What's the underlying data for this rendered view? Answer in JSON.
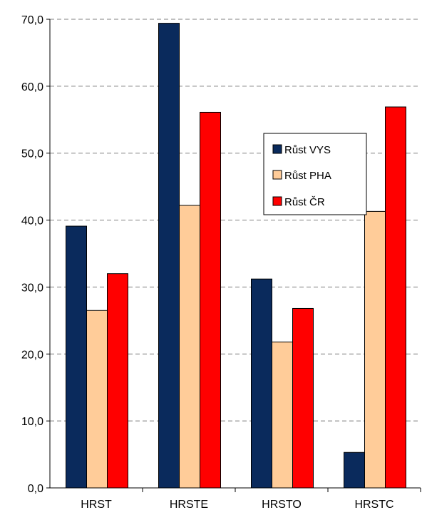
{
  "chart_data": {
    "type": "bar",
    "categories": [
      "HRST",
      "HRSTE",
      "HRSTO",
      "HRSTC"
    ],
    "series": [
      {
        "name": "Růst VYS",
        "color": "#0a2a5c",
        "values": [
          39.1,
          69.4,
          31.2,
          5.3
        ]
      },
      {
        "name": "Růst PHA",
        "color": "#ffcc99",
        "values": [
          26.5,
          42.2,
          21.8,
          41.3
        ]
      },
      {
        "name": "Růst ČR",
        "color": "#ff0000",
        "values": [
          32.0,
          56.1,
          26.8,
          56.9
        ]
      }
    ],
    "y_ticks": [
      "0,0",
      "10,0",
      "20,0",
      "30,0",
      "40,0",
      "50,0",
      "60,0",
      "70,0"
    ],
    "ylim": [
      0,
      70
    ],
    "grid": true,
    "legend_position": "right-center"
  }
}
